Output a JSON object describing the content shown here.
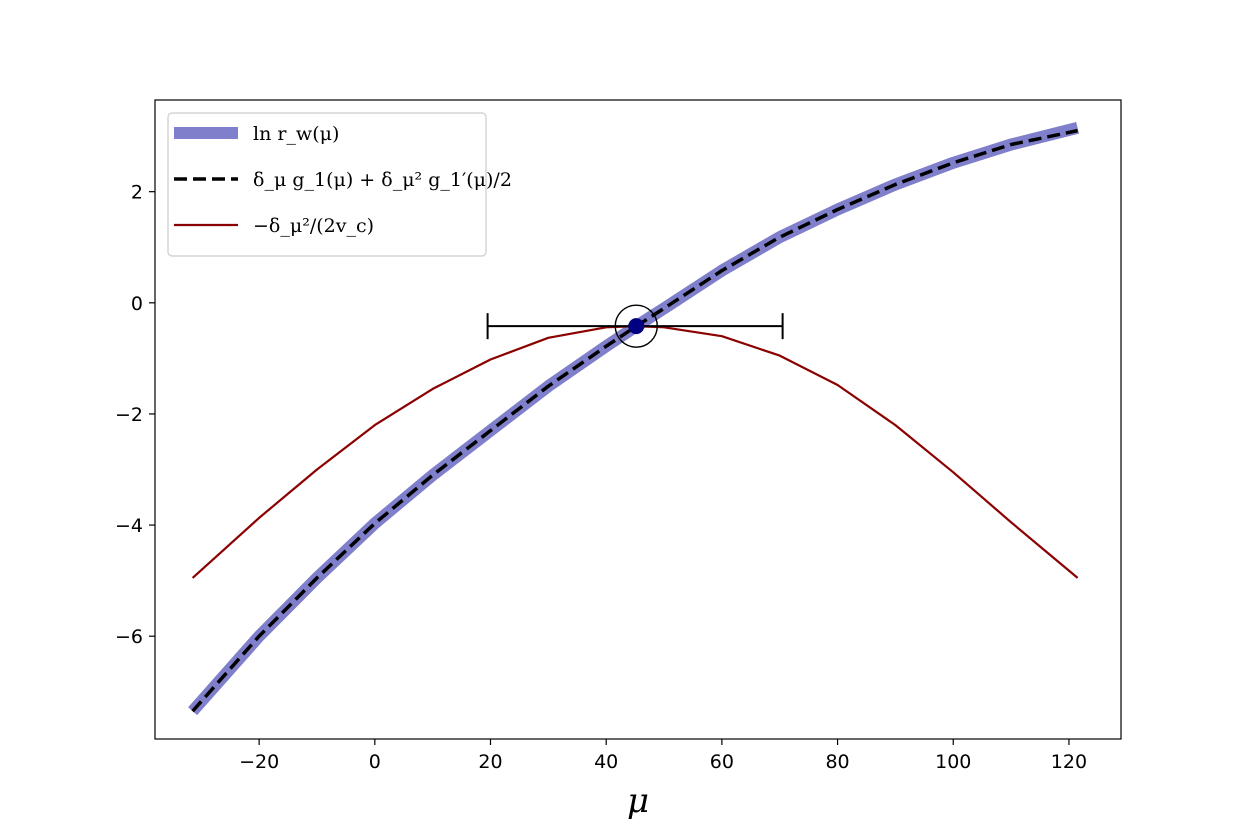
{
  "chart_data": {
    "type": "line",
    "xlabel": "μ",
    "ylabel": "",
    "title": "",
    "xlim": [
      -38,
      129
    ],
    "ylim": [
      -7.85,
      3.65
    ],
    "xticks": [
      -20,
      0,
      20,
      40,
      60,
      80,
      100,
      120
    ],
    "yticks": [
      -6,
      -4,
      -2,
      0,
      2
    ],
    "x_tick_labels": [
      "−20",
      "0",
      "20",
      "40",
      "60",
      "80",
      "100",
      "120"
    ],
    "y_tick_labels": [
      "−6",
      "−4",
      "−2",
      "0",
      "2"
    ],
    "grid": false,
    "legend_position": "top-left",
    "series": [
      {
        "name": "ln r_w(μ)",
        "color": "#7f7fcc",
        "style": "thick-solid",
        "x": [
          -31.5,
          -20,
          -10,
          0,
          10,
          20,
          30,
          40,
          45.2,
          50,
          60,
          70,
          80,
          90,
          100,
          110,
          121.5
        ],
        "y": [
          -7.35,
          -6.0,
          -4.95,
          -3.97,
          -3.1,
          -2.3,
          -1.5,
          -0.78,
          -0.42,
          -0.1,
          0.58,
          1.18,
          1.68,
          2.13,
          2.52,
          2.85,
          3.15
        ]
      },
      {
        "name": "δ_μ g_1(μ) + δ_μ² g_1′(μ)/2",
        "color": "#000000",
        "style": "dashed",
        "x": [
          -31.5,
          -20,
          -10,
          0,
          10,
          20,
          30,
          40,
          45.2,
          50,
          60,
          70,
          80,
          90,
          100,
          110,
          121.5
        ],
        "y": [
          -7.35,
          -6.0,
          -4.95,
          -3.97,
          -3.1,
          -2.3,
          -1.5,
          -0.78,
          -0.42,
          -0.1,
          0.58,
          1.18,
          1.68,
          2.13,
          2.52,
          2.85,
          3.1
        ]
      },
      {
        "name": "−δ_μ²/(2v_c)",
        "color": "#8b0000",
        "style": "solid",
        "x": [
          -31.5,
          -20,
          -10,
          0,
          10,
          20,
          30,
          40,
          45.2,
          50,
          60,
          70,
          80,
          90,
          100,
          110,
          121.5
        ],
        "y": [
          -4.95,
          -3.87,
          -3.0,
          -2.2,
          -1.55,
          -1.02,
          -0.63,
          -0.44,
          -0.42,
          -0.44,
          -0.6,
          -0.95,
          -1.48,
          -2.2,
          -3.05,
          -3.95,
          -4.95
        ]
      }
    ],
    "marker": {
      "x": 45.2,
      "y": -0.42,
      "color": "#000080"
    },
    "errorbar": {
      "x_low": 19.5,
      "x_high": 70.5,
      "y": -0.42,
      "color": "#000000"
    },
    "legend": {
      "entries": [
        {
          "label": "ln r_w(μ)",
          "color": "#7f7fcc",
          "style": "thick-solid"
        },
        {
          "label": "δ_μ g_1(μ) + δ_μ² g_1′(μ)/2",
          "color": "#000000",
          "style": "dashed"
        },
        {
          "label": "−δ_μ²/(2v_c)",
          "color": "#8b0000",
          "style": "solid"
        }
      ]
    }
  }
}
